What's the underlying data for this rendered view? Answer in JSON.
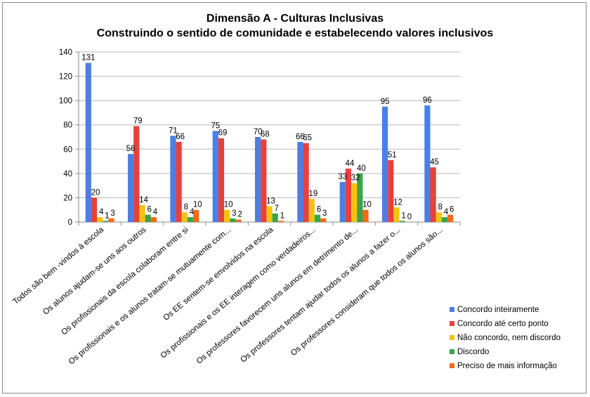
{
  "chart_data": {
    "type": "bar",
    "title": "Dimensão A - Culturas Inclusivas",
    "subtitle": "Construindo o sentido de comunidade e estabelecendo valores inclusivos",
    "xlabel": "",
    "ylabel": "",
    "ylim": [
      0,
      140
    ],
    "yticks": [
      0,
      20,
      40,
      60,
      80,
      100,
      120,
      140
    ],
    "grid": true,
    "legend_position": "right",
    "categories": [
      "Todos são bem -vindos à escola",
      "Os alunos ajudam-se uns aos outros",
      "Os profissionais da escola colaboram entre si",
      "Os profissionais e os alunos tratam-se mutuamente com...",
      "Os EE sentem-se envolvidos na escola",
      "Os profissionais e os EE interagem como verdadeiros...",
      "Os professores favorecem uns alunos em detrimento de...",
      "Os professores tentam ajudar todos os alunos a fazer o...",
      "Os professores consideram que todos os alunos são..."
    ],
    "series": [
      {
        "name": "Concordo inteiramente",
        "color": "#4a7fe6",
        "values": [
          131,
          56,
          71,
          75,
          70,
          66,
          33,
          95,
          96
        ]
      },
      {
        "name": "Concordo até certo ponto",
        "color": "#e8403a",
        "values": [
          20,
          79,
          66,
          69,
          68,
          65,
          44,
          51,
          45
        ]
      },
      {
        "name": "Não concordo, nem discordo",
        "color": "#f5c20f",
        "values": [
          4,
          14,
          8,
          10,
          13,
          19,
          32,
          12,
          8
        ]
      },
      {
        "name": "Discordo",
        "color": "#3aa44a",
        "values": [
          1,
          6,
          4,
          3,
          7,
          6,
          40,
          1,
          4
        ]
      },
      {
        "name": "Preciso de mais informação",
        "color": "#f26a1b",
        "values": [
          3,
          4,
          10,
          2,
          1,
          3,
          10,
          0,
          6
        ]
      }
    ]
  }
}
